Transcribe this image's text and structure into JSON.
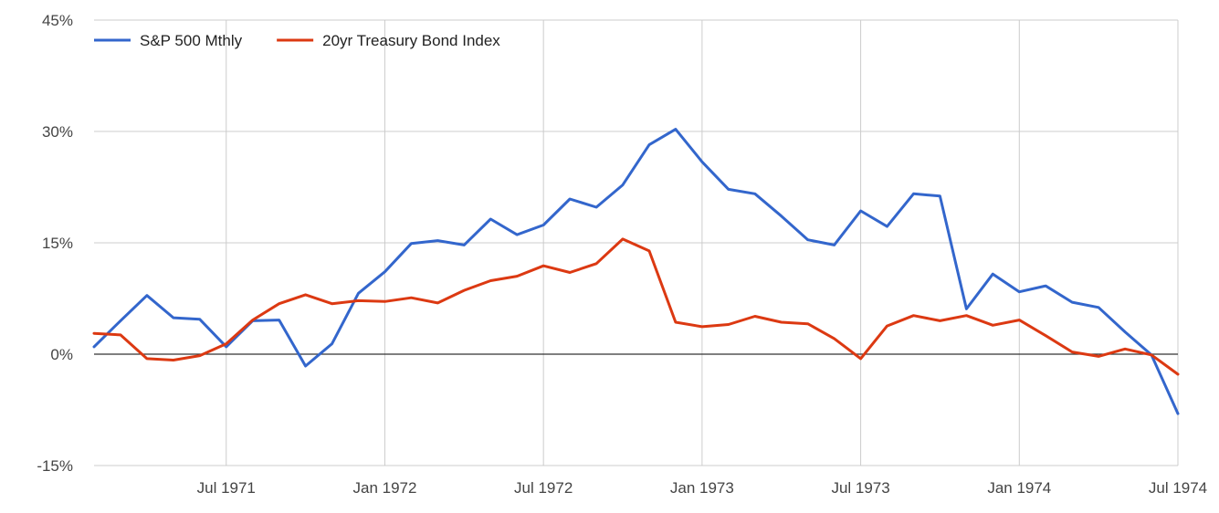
{
  "chart_data": {
    "type": "line",
    "x": [
      "1971-02",
      "1971-03",
      "1971-04",
      "1971-05",
      "1971-06",
      "1971-07",
      "1971-08",
      "1971-09",
      "1971-10",
      "1971-11",
      "1971-12",
      "1972-01",
      "1972-02",
      "1972-03",
      "1972-04",
      "1972-05",
      "1972-06",
      "1972-07",
      "1972-08",
      "1972-09",
      "1972-10",
      "1972-11",
      "1972-12",
      "1973-01",
      "1973-02",
      "1973-03",
      "1973-04",
      "1973-05",
      "1973-06",
      "1973-07",
      "1973-08",
      "1973-09",
      "1973-10",
      "1973-11",
      "1973-12",
      "1974-01",
      "1974-02",
      "1974-03",
      "1974-04",
      "1974-05",
      "1974-06",
      "1974-07"
    ],
    "x_ticks": [
      "Jul 1971",
      "Jan 1972",
      "Jul 1972",
      "Jan 1973",
      "Jul 1973",
      "Jan 1974",
      "Jul 1974"
    ],
    "x_tick_dates": [
      "1971-07",
      "1972-01",
      "1972-07",
      "1973-01",
      "1973-07",
      "1974-01",
      "1974-07"
    ],
    "y_ticks": [
      "45%",
      "30%",
      "15%",
      "0%",
      "-15%"
    ],
    "y_tick_values": [
      45,
      30,
      15,
      0,
      -15
    ],
    "ylim": [
      -15,
      45
    ],
    "grid": true,
    "legend_position": "top-left",
    "series": [
      {
        "name": "S&P 500 Mthly",
        "color": "#3366cc",
        "values": [
          1.0,
          4.5,
          7.9,
          4.9,
          4.7,
          1.0,
          4.5,
          4.6,
          -1.6,
          1.4,
          8.2,
          11.1,
          14.9,
          15.3,
          14.7,
          18.2,
          16.1,
          17.4,
          20.9,
          19.8,
          22.8,
          28.2,
          30.3,
          25.9,
          22.2,
          21.6,
          18.6,
          15.4,
          14.7,
          19.3,
          17.2,
          21.6,
          21.3,
          6.1,
          10.8,
          8.4,
          9.2,
          7.0,
          6.3,
          3.0,
          -0.1,
          -8.0
        ]
      },
      {
        "name": "20yr Treasury Bond Index",
        "color": "#dc3912",
        "values": [
          2.8,
          2.6,
          -0.6,
          -0.8,
          -0.2,
          1.4,
          4.6,
          6.8,
          8.0,
          6.8,
          7.2,
          7.1,
          7.6,
          6.9,
          8.6,
          9.9,
          10.5,
          11.9,
          11.0,
          12.2,
          15.5,
          13.9,
          4.3,
          3.7,
          4.0,
          5.1,
          4.3,
          4.1,
          2.1,
          -0.6,
          3.8,
          5.2,
          4.5,
          5.2,
          3.9,
          4.6,
          2.5,
          0.3,
          -0.3,
          0.7,
          -0.1,
          -2.7
        ]
      }
    ]
  }
}
